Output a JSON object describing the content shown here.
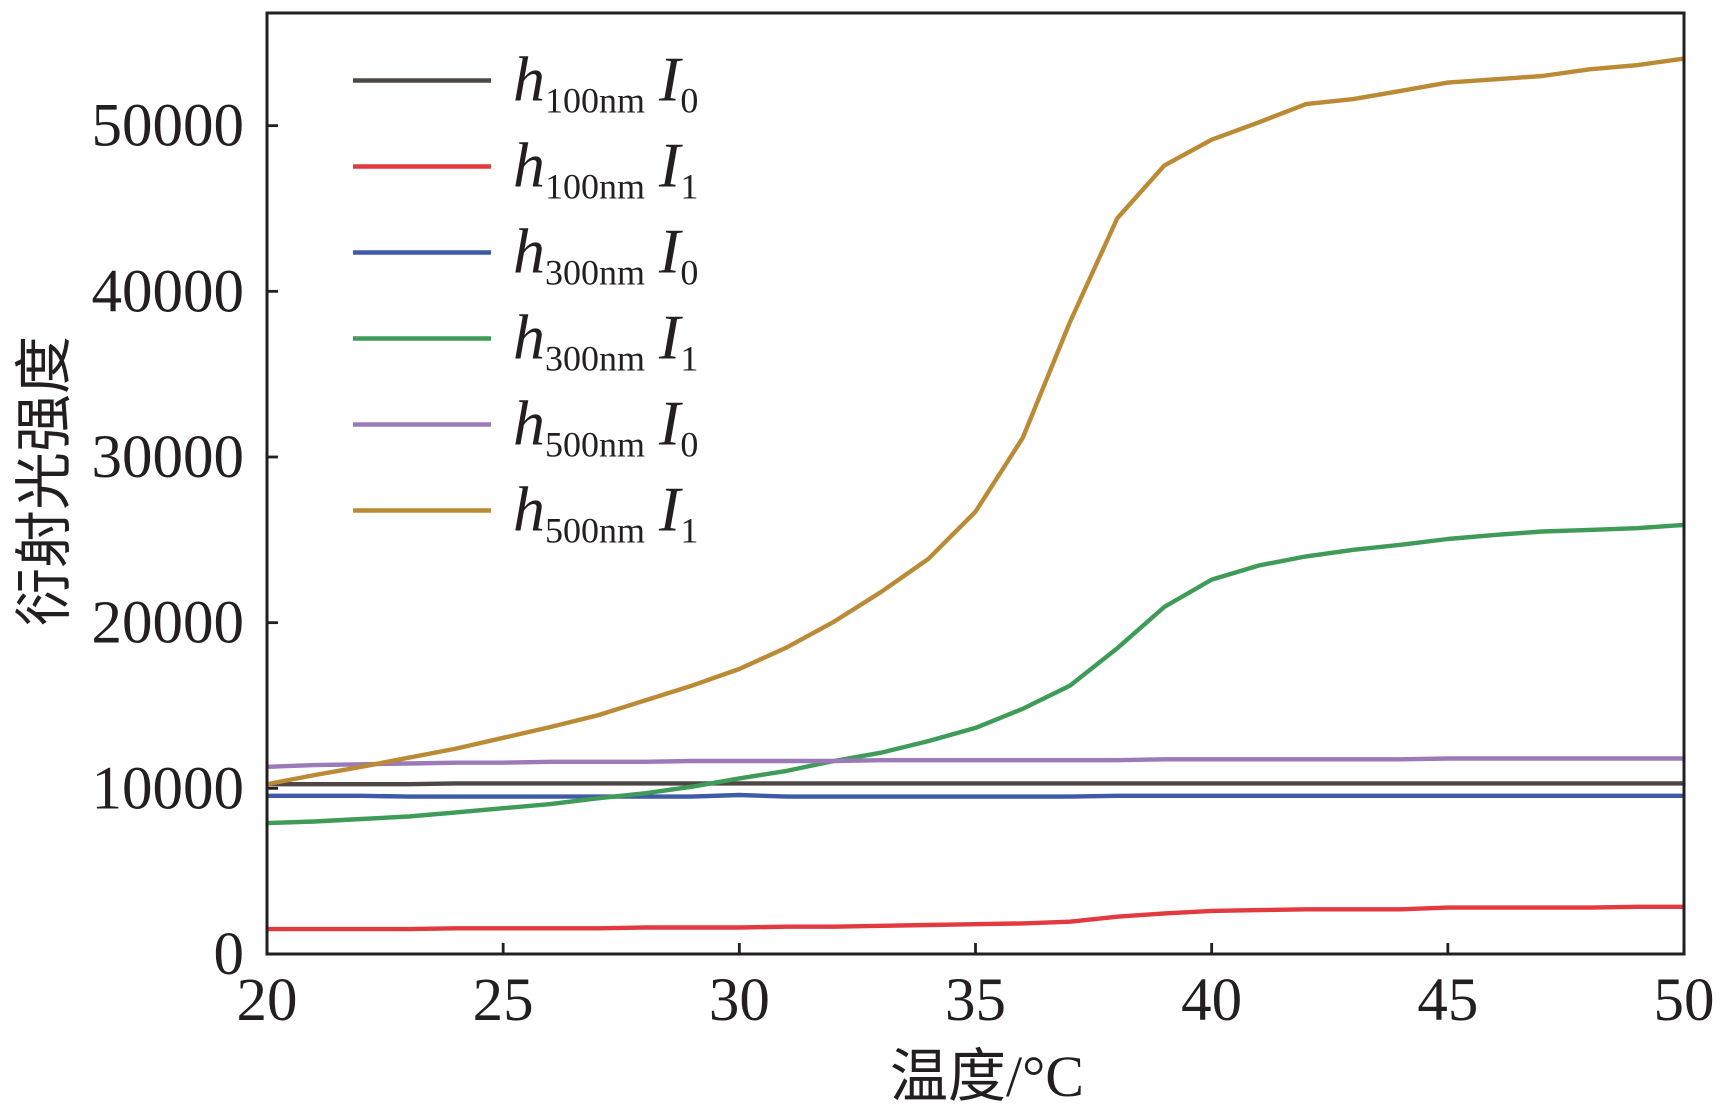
{
  "chart_data": {
    "type": "line",
    "xlabel": "温度/°C",
    "ylabel": "衍射光强度",
    "xlim": [
      20,
      50
    ],
    "ylim": [
      0,
      56800
    ],
    "xticks": [
      20,
      25,
      30,
      35,
      40,
      45,
      50
    ],
    "yticks": [
      0,
      10000,
      20000,
      30000,
      40000,
      50000
    ],
    "grid": false,
    "legend_position": "top-left",
    "axis_color": "#231f20",
    "x": [
      20,
      21,
      22,
      23,
      24,
      25,
      26,
      27,
      28,
      29,
      30,
      31,
      32,
      33,
      34,
      35,
      36,
      37,
      38,
      39,
      40,
      41,
      42,
      43,
      44,
      45,
      46,
      47,
      48,
      49,
      50
    ],
    "series": [
      {
        "label": {
          "base": "h",
          "base_sub": "100nm",
          "var": "I",
          "var_sub": "0"
        },
        "color": "#4d4845",
        "values": [
          10250,
          10250,
          10250,
          10250,
          10300,
          10300,
          10300,
          10300,
          10300,
          10300,
          10300,
          10300,
          10300,
          10300,
          10300,
          10300,
          10300,
          10300,
          10300,
          10300,
          10300,
          10300,
          10300,
          10300,
          10300,
          10300,
          10300,
          10300,
          10300,
          10300,
          10300
        ]
      },
      {
        "label": {
          "base": "h",
          "base_sub": "100nm",
          "var": "I",
          "var_sub": "1"
        },
        "color": "#e23a3f",
        "values": [
          1500,
          1500,
          1500,
          1500,
          1550,
          1550,
          1550,
          1550,
          1600,
          1600,
          1600,
          1650,
          1650,
          1700,
          1750,
          1800,
          1850,
          1950,
          2250,
          2450,
          2600,
          2650,
          2700,
          2700,
          2700,
          2800,
          2800,
          2800,
          2800,
          2850,
          2850
        ]
      },
      {
        "label": {
          "base": "h",
          "base_sub": "300nm",
          "var": "I",
          "var_sub": "0"
        },
        "color": "#3f5aa6",
        "values": [
          9550,
          9550,
          9550,
          9500,
          9500,
          9500,
          9500,
          9500,
          9500,
          9500,
          9600,
          9500,
          9500,
          9500,
          9500,
          9500,
          9500,
          9500,
          9550,
          9550,
          9550,
          9550,
          9550,
          9550,
          9550,
          9550,
          9550,
          9550,
          9550,
          9550,
          9550
        ]
      },
      {
        "label": {
          "base": "h",
          "base_sub": "300nm",
          "var": "I",
          "var_sub": "1"
        },
        "color": "#3e9b58",
        "values": [
          7900,
          8000,
          8150,
          8300,
          8550,
          8800,
          9050,
          9400,
          9700,
          10100,
          10600,
          11050,
          11650,
          12150,
          12850,
          13650,
          14800,
          16200,
          18450,
          20950,
          22600,
          23450,
          24000,
          24400,
          24700,
          25050,
          25300,
          25500,
          25600,
          25700,
          25900
        ]
      },
      {
        "label": {
          "base": "h",
          "base_sub": "500nm",
          "var": "I",
          "var_sub": "0"
        },
        "color": "#9b7ab8",
        "values": [
          11300,
          11400,
          11450,
          11500,
          11550,
          11550,
          11600,
          11600,
          11600,
          11650,
          11650,
          11650,
          11650,
          11700,
          11700,
          11700,
          11700,
          11700,
          11700,
          11750,
          11750,
          11750,
          11750,
          11750,
          11750,
          11800,
          11800,
          11800,
          11800,
          11800,
          11800
        ]
      },
      {
        "label": {
          "base": "h",
          "base_sub": "500nm",
          "var": "I",
          "var_sub": "1"
        },
        "color": "#bb8a35",
        "values": [
          10250,
          10800,
          11300,
          11850,
          12400,
          13050,
          13700,
          14400,
          15300,
          16200,
          17200,
          18500,
          20050,
          21850,
          23850,
          26700,
          31150,
          38150,
          44400,
          47600,
          49150,
          50200,
          51300,
          51600,
          52100,
          52600,
          52800,
          53000,
          53400,
          53650,
          54050
        ]
      }
    ]
  }
}
